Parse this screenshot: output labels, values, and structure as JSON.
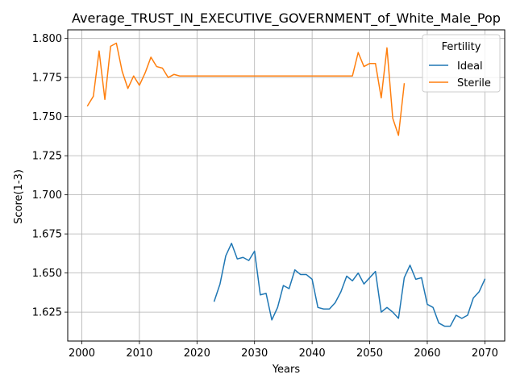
{
  "chart_data": {
    "type": "line",
    "title": "Average_TRUST_IN_EXECUTIVE_GOVERNMENT_of_White_Male_Pop",
    "xlabel": "Years",
    "ylabel": "Score(1-3)",
    "xlim": [
      1997.55,
      2073.45
    ],
    "ylim": [
      1.6065,
      1.8055
    ],
    "xticks": [
      2000,
      2010,
      2020,
      2030,
      2040,
      2050,
      2060,
      2070
    ],
    "yticks": [
      1.625,
      1.65,
      1.675,
      1.7,
      1.725,
      1.75,
      1.775,
      1.8
    ],
    "xtick_labels": [
      "2000",
      "2010",
      "2020",
      "2030",
      "2040",
      "2050",
      "2060",
      "2070"
    ],
    "ytick_labels": [
      "1.625",
      "1.650",
      "1.675",
      "1.700",
      "1.725",
      "1.750",
      "1.775",
      "1.800"
    ],
    "grid": true,
    "legend": {
      "title": "Fertility",
      "position": "top-right"
    },
    "series": [
      {
        "name": "Ideal",
        "color": "#1f77b4",
        "x": [
          2023,
          2024,
          2025,
          2026,
          2027,
          2028,
          2029,
          2030,
          2031,
          2032,
          2033,
          2034,
          2035,
          2036,
          2037,
          2038,
          2039,
          2040,
          2041,
          2042,
          2043,
          2044,
          2045,
          2046,
          2047,
          2048,
          2049,
          2050,
          2051,
          2052,
          2053,
          2054,
          2055,
          2056,
          2057,
          2058,
          2059,
          2060,
          2061,
          2062,
          2063,
          2064,
          2065,
          2066,
          2067,
          2068,
          2069,
          2070
        ],
        "y": [
          1.632,
          1.643,
          1.661,
          1.669,
          1.659,
          1.66,
          1.658,
          1.664,
          1.636,
          1.637,
          1.62,
          1.628,
          1.642,
          1.64,
          1.652,
          1.649,
          1.649,
          1.646,
          1.628,
          1.627,
          1.627,
          1.631,
          1.638,
          1.648,
          1.645,
          1.65,
          1.643,
          1.647,
          1.651,
          1.625,
          1.628,
          1.625,
          1.621,
          1.647,
          1.655,
          1.646,
          1.647,
          1.63,
          1.628,
          1.618,
          1.616,
          1.616,
          1.623,
          1.621,
          1.623,
          1.634,
          1.638,
          1.646
        ]
      },
      {
        "name": "Sterile",
        "color": "#ff7f0e",
        "x": [
          2001,
          2002,
          2003,
          2004,
          2005,
          2006,
          2007,
          2008,
          2009,
          2010,
          2011,
          2012,
          2013,
          2014,
          2015,
          2016,
          2017,
          2018,
          2019,
          2020,
          2021,
          2022,
          2023,
          2024,
          2025,
          2026,
          2027,
          2028,
          2029,
          2030,
          2031,
          2032,
          2033,
          2034,
          2035,
          2036,
          2037,
          2038,
          2039,
          2040,
          2041,
          2042,
          2043,
          2044,
          2045,
          2046,
          2047,
          2048,
          2049,
          2050,
          2051,
          2052,
          2053,
          2054,
          2055,
          2056
        ],
        "y": [
          1.757,
          1.763,
          1.792,
          1.761,
          1.795,
          1.797,
          1.779,
          1.768,
          1.776,
          1.77,
          1.778,
          1.788,
          1.782,
          1.781,
          1.775,
          1.777,
          1.776,
          1.776,
          1.776,
          1.776,
          1.776,
          1.776,
          1.776,
          1.776,
          1.776,
          1.776,
          1.776,
          1.776,
          1.776,
          1.776,
          1.776,
          1.776,
          1.776,
          1.776,
          1.776,
          1.776,
          1.776,
          1.776,
          1.776,
          1.776,
          1.776,
          1.776,
          1.776,
          1.776,
          1.776,
          1.776,
          1.776,
          1.791,
          1.782,
          1.784,
          1.784,
          1.762,
          1.794,
          1.749,
          1.738,
          1.771
        ]
      }
    ]
  }
}
